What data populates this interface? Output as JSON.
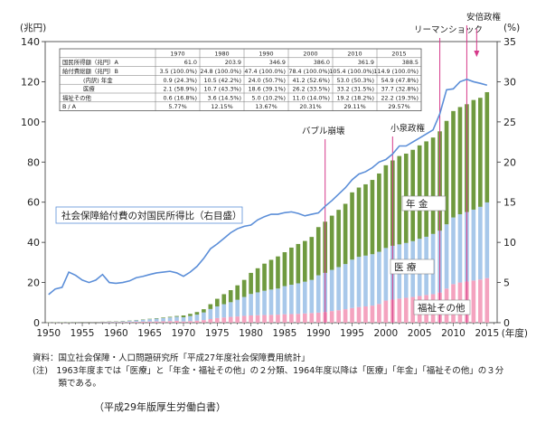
{
  "chart_data": {
    "type": "bar",
    "ylabel_left": "(兆円)",
    "ylabel_right": "(%)",
    "xlabel": "(年度)",
    "ylim_left": [
      0,
      140
    ],
    "ylim_right": [
      0,
      35
    ],
    "yticks_left": [
      0,
      20,
      40,
      60,
      80,
      100,
      120,
      140
    ],
    "yticks_right": [
      0,
      5,
      10,
      15,
      20,
      25,
      30,
      35
    ],
    "xticks": [
      1950,
      1955,
      1960,
      1965,
      1970,
      1975,
      1980,
      1985,
      1990,
      1995,
      2000,
      2005,
      2010,
      2015
    ],
    "x": [
      1950,
      1951,
      1952,
      1953,
      1954,
      1955,
      1956,
      1957,
      1958,
      1959,
      1960,
      1961,
      1962,
      1963,
      1964,
      1965,
      1966,
      1967,
      1968,
      1969,
      1970,
      1971,
      1972,
      1973,
      1974,
      1975,
      1976,
      1977,
      1978,
      1979,
      1980,
      1981,
      1982,
      1983,
      1984,
      1985,
      1986,
      1987,
      1988,
      1989,
      1990,
      1991,
      1992,
      1993,
      1994,
      1995,
      1996,
      1997,
      1998,
      1999,
      2000,
      2001,
      2002,
      2003,
      2004,
      2005,
      2006,
      2007,
      2008,
      2009,
      2010,
      2011,
      2012,
      2013,
      2014,
      2015
    ],
    "series": [
      {
        "name": "福祉その他",
        "color": "#f4a3bf",
        "values": [
          0.05,
          0.06,
          0.08,
          0.1,
          0.12,
          0.14,
          0.15,
          0.17,
          0.19,
          0.22,
          0.25,
          0.3,
          0.35,
          0.42,
          0.5,
          0.55,
          0.62,
          0.7,
          0.8,
          0.95,
          0.6,
          0.8,
          1.0,
          1.3,
          1.8,
          2.3,
          2.6,
          2.9,
          3.1,
          3.4,
          3.6,
          3.7,
          3.8,
          3.9,
          4.0,
          4.2,
          4.3,
          4.4,
          4.6,
          4.8,
          5.0,
          5.3,
          5.8,
          6.2,
          6.7,
          7.3,
          7.8,
          8.1,
          8.5,
          9.3,
          11.0,
          11.5,
          12.0,
          12.4,
          12.8,
          13.3,
          13.8,
          14.2,
          15.0,
          17.0,
          19.2,
          20.0,
          20.5,
          21.0,
          21.5,
          22.2
        ]
      },
      {
        "name": "医療",
        "color": "#a8c8ea",
        "values": [
          0.04,
          0.05,
          0.07,
          0.1,
          0.13,
          0.16,
          0.18,
          0.21,
          0.25,
          0.3,
          0.35,
          0.45,
          0.6,
          0.8,
          1.0,
          1.2,
          1.4,
          1.6,
          1.8,
          2.0,
          2.1,
          2.5,
          3.0,
          3.8,
          5.0,
          5.8,
          6.6,
          7.3,
          8.3,
          9.4,
          10.7,
          11.4,
          12.1,
          12.6,
          13.0,
          14.0,
          14.6,
          15.2,
          15.8,
          16.5,
          18.6,
          19.5,
          20.5,
          21.5,
          22.5,
          24.1,
          25.0,
          25.3,
          25.6,
          26.0,
          26.2,
          26.8,
          27.0,
          27.3,
          27.8,
          28.5,
          29.0,
          30.0,
          30.8,
          32.0,
          33.2,
          34.0,
          34.6,
          35.3,
          36.2,
          37.7
        ]
      },
      {
        "name": "年金",
        "color": "#6f9a3f",
        "values": [
          0.01,
          0.01,
          0.02,
          0.03,
          0.04,
          0.05,
          0.05,
          0.06,
          0.07,
          0.08,
          0.09,
          0.1,
          0.12,
          0.14,
          0.16,
          0.19,
          0.23,
          0.28,
          0.33,
          0.39,
          0.9,
          1.1,
          1.3,
          1.6,
          2.4,
          3.8,
          5.0,
          6.0,
          7.2,
          8.5,
          10.5,
          12.0,
          13.5,
          14.8,
          16.0,
          16.9,
          18.5,
          19.6,
          20.3,
          21.4,
          24.0,
          25.5,
          27.0,
          28.5,
          30.0,
          33.5,
          34.5,
          35.5,
          37.0,
          39.0,
          41.2,
          42.5,
          44.0,
          44.5,
          45.5,
          46.5,
          47.5,
          48.0,
          49.5,
          51.5,
          53.0,
          53.4,
          53.7,
          54.6,
          54.3,
          54.9
        ]
      }
    ],
    "ratio_series": {
      "name": "社会保障給付費の対国民所得比（右目盛）",
      "color": "#5b8ed8",
      "values": [
        3.5,
        4.2,
        4.4,
        6.3,
        5.9,
        5.3,
        5.0,
        5.3,
        6.0,
        5.0,
        4.9,
        5.0,
        5.2,
        5.6,
        5.77,
        6.0,
        6.2,
        6.3,
        6.4,
        6.2,
        5.77,
        6.3,
        7.0,
        8.0,
        9.2,
        9.8,
        10.5,
        11.2,
        11.7,
        12.0,
        12.15,
        12.8,
        13.2,
        13.5,
        13.5,
        13.7,
        13.8,
        13.6,
        13.3,
        13.5,
        13.67,
        14.5,
        15.2,
        16.0,
        16.8,
        17.8,
        18.5,
        18.8,
        19.3,
        20.0,
        20.31,
        21.0,
        22.0,
        22.0,
        22.5,
        23.0,
        23.5,
        24.0,
        26.0,
        29.0,
        29.11,
        30.0,
        30.3,
        30.0,
        29.8,
        29.57
      ]
    },
    "events": [
      {
        "label": "バブル崩壊",
        "year": 1991
      },
      {
        "label": "小泉政権",
        "year": 2001
      },
      {
        "label": "リーマンショック",
        "year": 2008
      },
      {
        "label": "安倍政権",
        "year": 2012
      }
    ],
    "inline_labels": [
      "年 金",
      "医 療",
      "福祉その他"
    ],
    "table": {
      "headers": [
        "",
        "1970",
        "1980",
        "1990",
        "2000",
        "2010",
        "2015"
      ],
      "rows": [
        [
          "国民所得額（兆円）A",
          "61.0",
          "203.9",
          "346.9",
          "386.0",
          "361.9",
          "388.5"
        ],
        [
          "給付費総額（兆円）B",
          "3.5 (100.0%)",
          "24.8 (100.0%)",
          "47.4 (100.0%)",
          "78.4 (100.0%)",
          "105.4 (100.0%)",
          "114.9 (100.0%)"
        ],
        [
          "(内訳) 年金",
          "0.9 (24.3%)",
          "10.5 (42.2%)",
          "24.0 (50.7%)",
          "41.2 (52.6%)",
          "53.0 (50.3%)",
          "54.9 (47.8%)"
        ],
        [
          "医療",
          "2.1 (58.9%)",
          "10.7 (43.3%)",
          "18.6 (39.1%)",
          "26.2 (33.5%)",
          "33.2 (31.5%)",
          "37.7 (32.8%)"
        ],
        [
          "福祉その他",
          "0.6 (16.8%)",
          "3.6 (14.5%)",
          "5.0 (10.2%)",
          "11.0 (14.0%)",
          "19.2 (18.2%)",
          "22.2 (19.3%)"
        ],
        [
          "B / A",
          "5.77%",
          "12.15%",
          "13.67%",
          "20.31%",
          "29.11%",
          "29.57%"
        ]
      ]
    },
    "notes": [
      "資料：国立社会保障・人口問題研究所「平成27年度社会保障費用統計」",
      "(注)　1963年度までは「医療」と「年金・福祉その他」の２分類、1964年度以降は「医療」「年金」「福祉その他」の３分",
      "　　　類である。"
    ],
    "source": "（平成29年版厚生労働白書）"
  }
}
